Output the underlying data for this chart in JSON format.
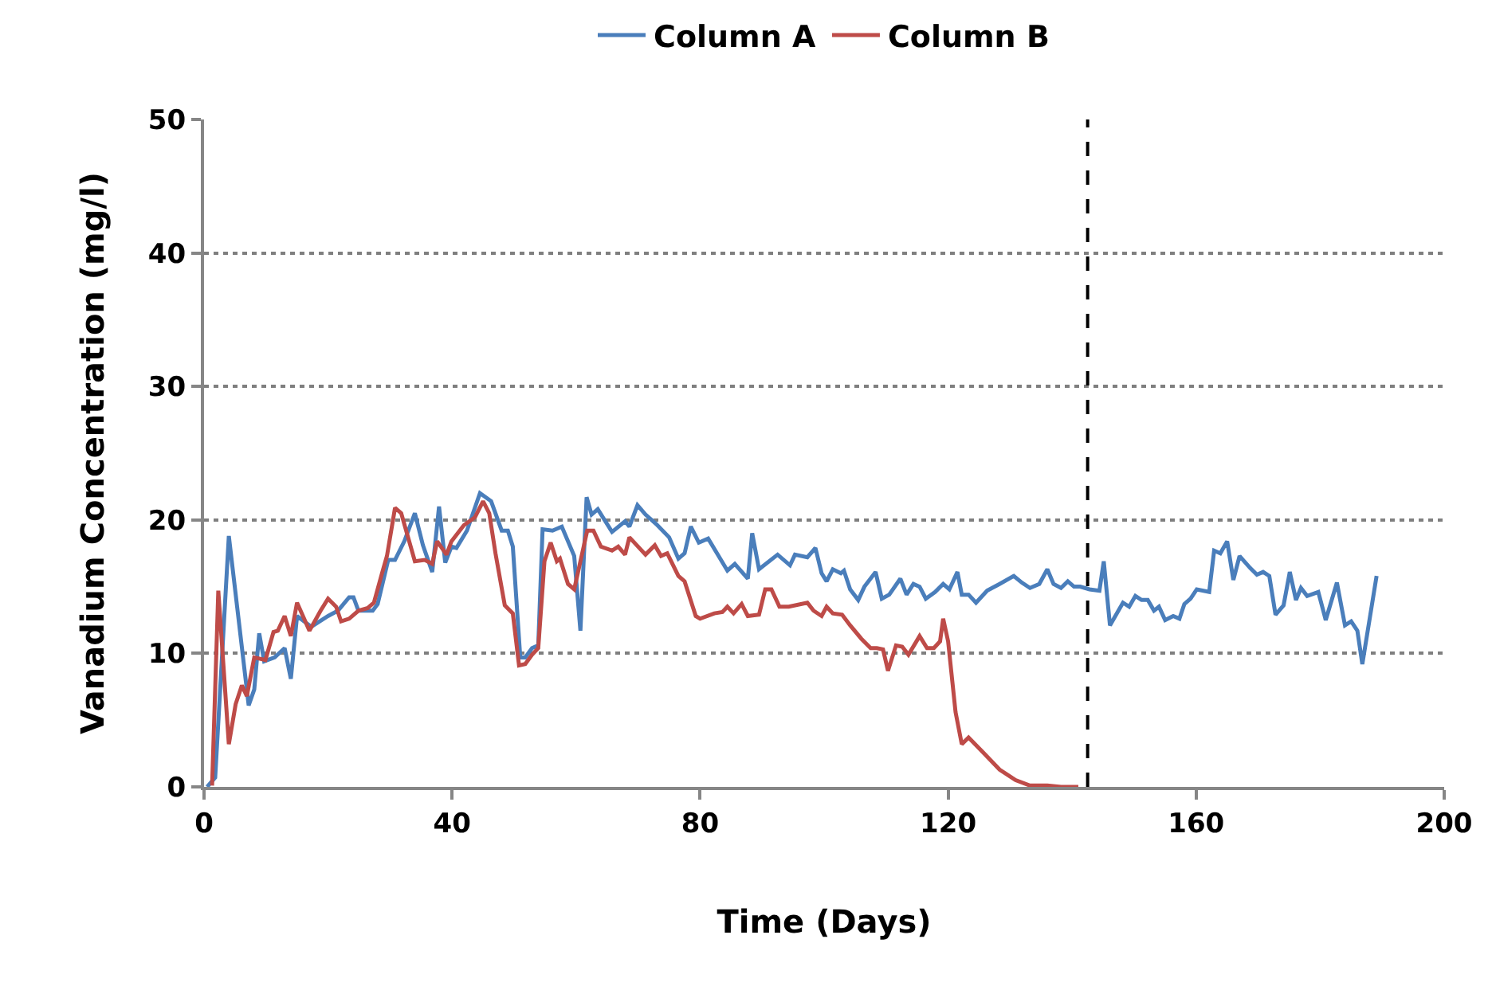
{
  "chart_data": {
    "type": "line",
    "xlabel": "Time (Days)",
    "ylabel": "Vanadium Concentration (mg/l)",
    "xlim": [
      0,
      200
    ],
    "xticks": [
      0,
      40,
      80,
      120,
      160,
      200
    ],
    "ylim": [
      0,
      50
    ],
    "yticks": [
      0,
      10,
      20,
      30,
      40,
      50
    ],
    "grid": "y",
    "legend": "top",
    "marker": "none",
    "line_style": "solid",
    "ref_lines": [
      {
        "axis": "x",
        "value": 142.5,
        "color": "#000000",
        "line_style": "dashed"
      }
    ],
    "series": [
      {
        "name": "Column A",
        "color": "#4a7ebb",
        "x": [
          0.5,
          1.8,
          4,
          7.2,
          8.1,
          8.9,
          9.7,
          11.4,
          13,
          14,
          15,
          17.3,
          20,
          21.6,
          23.4,
          24.1,
          24.9,
          27.2,
          28,
          29.7,
          30.8,
          32.3,
          34,
          35.3,
          36.8,
          37.9,
          38.9,
          39.9,
          40.7,
          42.4,
          44.5,
          46.3,
          48,
          49,
          49.8,
          51,
          51.8,
          52.9,
          53.9,
          54.6,
          56.2,
          57.7,
          59.7,
          60.7,
          61.7,
          62.5,
          63.5,
          65.8,
          67.9,
          68.6,
          69.9,
          71.2,
          72.9,
          75,
          76.5,
          77.5,
          78.5,
          79.8,
          81.3,
          84.4,
          85.6,
          87.7,
          88.4,
          89.5,
          92.5,
          94.5,
          95.3,
          97.3,
          98.6,
          99.6,
          100.4,
          101.4,
          102.7,
          103.2,
          104.2,
          105.5,
          106.5,
          108.3,
          109.3,
          110.5,
          112.3,
          113.3,
          114.4,
          115.4,
          116.4,
          117.9,
          119.2,
          120.2,
          121.5,
          122.2,
          123.3,
          124.5,
          126.3,
          128.3,
          130.6,
          131.9,
          133.2,
          134.7,
          136,
          137,
          138.2,
          139.3,
          140.3,
          141.3,
          142.8,
          144.4,
          145.1,
          146.1,
          148.2,
          149.2,
          150.2,
          151.2,
          152.2,
          153.2,
          154,
          155,
          156.3,
          157.3,
          158.1,
          159.1,
          160.1,
          162.1,
          162.9,
          163.9,
          165,
          166,
          167,
          168.7,
          169.8,
          170.8,
          171.8,
          172.8,
          174.1,
          175.1,
          176.1,
          176.9,
          177.9,
          179.7,
          180.9,
          182.7,
          184,
          185,
          186,
          186.8,
          189.1
        ],
        "values": [
          0,
          0.7,
          18.8,
          6.1,
          7.3,
          11.5,
          9.4,
          9.7,
          10.4,
          8.1,
          12.8,
          12,
          12.8,
          13.2,
          14.2,
          14.2,
          13.2,
          13.2,
          13.7,
          17,
          17,
          18.4,
          20.5,
          18.1,
          16.1,
          21,
          16.8,
          18,
          17.9,
          19.2,
          22,
          21.4,
          19.2,
          19.2,
          18,
          9.7,
          9.7,
          10.4,
          10.6,
          19.3,
          19.2,
          19.5,
          17.3,
          11.7,
          21.7,
          20.4,
          20.8,
          19.1,
          19.9,
          19.5,
          21.1,
          20.4,
          19.7,
          18.7,
          17.1,
          17.5,
          19.5,
          18.3,
          18.6,
          16.2,
          16.7,
          15.6,
          19,
          16.3,
          17.4,
          16.6,
          17.4,
          17.2,
          17.9,
          16,
          15.4,
          16.3,
          16,
          16.2,
          14.8,
          14,
          15,
          16.1,
          14.1,
          14.4,
          15.6,
          14.4,
          15.2,
          15,
          14.1,
          14.6,
          15.2,
          14.8,
          16.1,
          14.4,
          14.4,
          13.8,
          14.7,
          15.2,
          15.8,
          15.3,
          14.9,
          15.2,
          16.3,
          15.2,
          14.9,
          15.4,
          15,
          15,
          14.8,
          14.7,
          16.9,
          12.1,
          13.8,
          13.5,
          14.3,
          14,
          14,
          13.2,
          13.5,
          12.5,
          12.8,
          12.6,
          13.7,
          14.1,
          14.8,
          14.6,
          17.7,
          17.5,
          18.4,
          15.5,
          17.3,
          16.4,
          15.9,
          16.1,
          15.8,
          12.9,
          13.6,
          16.1,
          14,
          14.9,
          14.3,
          14.6,
          12.5,
          15.3,
          12.1,
          12.4,
          11.7,
          9.2,
          15.8
        ]
      },
      {
        "name": "Column B",
        "color": "#be4b48",
        "x": [
          1.3,
          2.3,
          4,
          5.1,
          6.1,
          6.9,
          8.1,
          9.9,
          11.2,
          11.9,
          13,
          14,
          15,
          17,
          18.8,
          20,
          21.3,
          22.1,
          23.4,
          24.9,
          26.4,
          27.4,
          28.7,
          29.5,
          30.8,
          31.8,
          34,
          35.6,
          36.8,
          37.6,
          39.1,
          39.9,
          41.9,
          43.7,
          45,
          46,
          47,
          48.5,
          49.8,
          50.8,
          51.8,
          52.9,
          53.9,
          54.9,
          55.9,
          56.9,
          57.4,
          58.7,
          59.7,
          61.8,
          62.8,
          64,
          65.8,
          66.8,
          67.9,
          68.6,
          71.2,
          72.7,
          73.7,
          74.7,
          76.5,
          77.5,
          79.3,
          80,
          82.3,
          83.6,
          84.4,
          85.4,
          86.7,
          87.7,
          89.5,
          90.5,
          91.5,
          92.8,
          94.3,
          97.3,
          98.3,
          99.6,
          100.4,
          101.4,
          102.9,
          104.2,
          106,
          107.5,
          108.5,
          109.5,
          110.3,
          111.6,
          112.6,
          113.6,
          115.4,
          116.6,
          117.7,
          118.7,
          119.2,
          120,
          121.2,
          122.2,
          123.3,
          125.8,
          128.3,
          130.9,
          133.2,
          136,
          138.2,
          141
        ],
        "values": [
          0.1,
          14.7,
          3.2,
          6.2,
          7.6,
          6.8,
          9.7,
          9.5,
          11.6,
          11.7,
          12.8,
          11.3,
          13.8,
          11.7,
          13.2,
          14.1,
          13.5,
          12.4,
          12.6,
          13.2,
          13.4,
          13.8,
          16,
          17.3,
          20.9,
          20.5,
          16.9,
          17,
          16.7,
          18.4,
          17.4,
          18.4,
          19.6,
          20.2,
          21.4,
          20.5,
          17.5,
          13.6,
          13,
          9.1,
          9.2,
          9.9,
          10.4,
          16.9,
          18.3,
          16.9,
          17.1,
          15.2,
          14.8,
          19.2,
          19.2,
          18,
          17.7,
          18,
          17.4,
          18.7,
          17.4,
          18.1,
          17.3,
          17.5,
          15.8,
          15.4,
          12.8,
          12.6,
          13,
          13.1,
          13.5,
          13,
          13.7,
          12.8,
          12.9,
          14.8,
          14.8,
          13.5,
          13.5,
          13.8,
          13.2,
          12.8,
          13.5,
          13,
          12.9,
          12.1,
          11.1,
          10.4,
          10.4,
          10.3,
          8.7,
          10.6,
          10.5,
          9.9,
          11.3,
          10.4,
          10.4,
          10.9,
          12.6,
          10.9,
          5.6,
          3.2,
          3.7,
          2.5,
          1.3,
          0.5,
          0.1,
          0.1,
          0,
          0
        ]
      }
    ]
  }
}
